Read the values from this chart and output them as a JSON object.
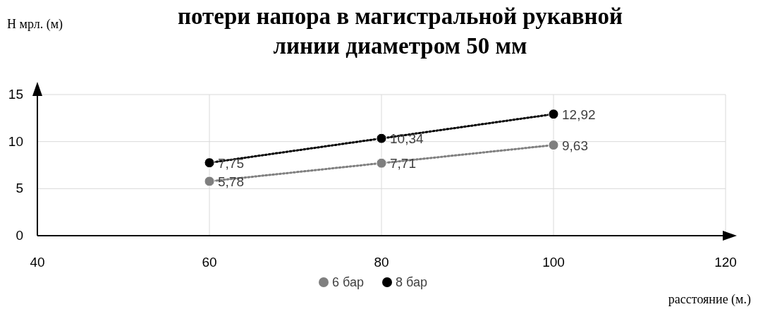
{
  "chart_data": {
    "type": "line",
    "title": "потери напора в  магистральной рукавной\nлинии диаметром 50 мм",
    "ylabel": "Н мрл. (м)",
    "xlabel": "расстояние (м.)",
    "x": [
      60,
      80,
      100
    ],
    "xlim": [
      40,
      120
    ],
    "xticks": [
      40,
      60,
      80,
      100,
      120
    ],
    "ylim": [
      0,
      15
    ],
    "yticks": [
      0,
      5,
      10,
      15
    ],
    "grid": true,
    "legend": "bottom",
    "marker": "circle",
    "line_style": "dotted",
    "series": [
      {
        "name": "6 бар",
        "color": "#7f7f7f",
        "values": [
          5.78,
          7.71,
          9.63
        ],
        "value_labels": [
          "5,78",
          "7,71",
          "9,63"
        ]
      },
      {
        "name": "8 бар",
        "color": "#000000",
        "values": [
          7.75,
          10.34,
          12.92
        ],
        "value_labels": [
          "7,75",
          "10,34",
          "12,92"
        ]
      }
    ]
  }
}
